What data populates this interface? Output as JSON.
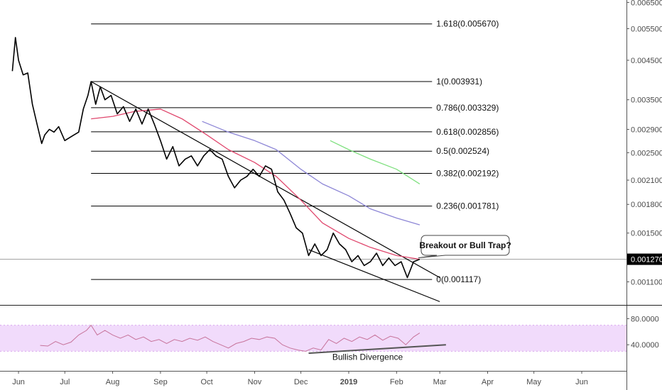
{
  "chart_data": [
    {
      "type": "line",
      "panel": "price",
      "scale": "log",
      "ylim": [
        0.00095,
        0.0066
      ],
      "xlim": [
        "2018-05-20",
        "2019-06-30"
      ],
      "x_ticks": [
        {
          "date": "2018-06-01",
          "label": "Jun"
        },
        {
          "date": "2018-07-01",
          "label": "Jul"
        },
        {
          "date": "2018-08-01",
          "label": "Aug"
        },
        {
          "date": "2018-09-01",
          "label": "Sep"
        },
        {
          "date": "2018-10-01",
          "label": "Oct"
        },
        {
          "date": "2018-11-01",
          "label": "Nov"
        },
        {
          "date": "2018-12-01",
          "label": "Dec"
        },
        {
          "date": "2019-01-01",
          "label": "2019"
        },
        {
          "date": "2019-02-01",
          "label": "Feb"
        },
        {
          "date": "2019-03-01",
          "label": "Mar"
        },
        {
          "date": "2019-04-01",
          "label": "Apr"
        },
        {
          "date": "2019-05-01",
          "label": "May"
        },
        {
          "date": "2019-06-01",
          "label": "Jun"
        }
      ],
      "y_ticks": [
        "0.006500",
        "0.005500",
        "0.004500",
        "0.003500",
        "0.002900",
        "0.002500",
        "0.002100",
        "0.001800",
        "0.001500",
        "0.001100"
      ],
      "last_price": "0.001270",
      "colors": {
        "price": "#000000",
        "ma_short": "#e0476d",
        "ma_mid": "#8d86d6",
        "ma_long": "#7fe07f",
        "last_price_line": "#9e9e9e",
        "rsi_band": "#f1dbfb",
        "rsi_line": "#c7739b"
      },
      "series": [
        {
          "key": "price",
          "values": [
            [
              "2018-05-28",
              0.0042
            ],
            [
              "2018-05-30",
              0.0052
            ],
            [
              "2018-06-01",
              0.0045
            ],
            [
              "2018-06-04",
              0.0041
            ],
            [
              "2018-06-07",
              0.00415
            ],
            [
              "2018-06-10",
              0.0034
            ],
            [
              "2018-06-13",
              0.003
            ],
            [
              "2018-06-16",
              0.00265
            ],
            [
              "2018-06-18",
              0.0028
            ],
            [
              "2018-06-21",
              0.0029
            ],
            [
              "2018-06-24",
              0.00285
            ],
            [
              "2018-06-27",
              0.00295
            ],
            [
              "2018-07-01",
              0.0027
            ],
            [
              "2018-07-04",
              0.00275
            ],
            [
              "2018-07-07",
              0.0028
            ],
            [
              "2018-07-10",
              0.00285
            ],
            [
              "2018-07-13",
              0.0033
            ],
            [
              "2018-07-16",
              0.0036
            ],
            [
              "2018-07-18",
              0.00393
            ],
            [
              "2018-07-21",
              0.0034
            ],
            [
              "2018-07-24",
              0.0038
            ],
            [
              "2018-07-27",
              0.0035
            ],
            [
              "2018-07-31",
              0.0036
            ],
            [
              "2018-08-04",
              0.0032
            ],
            [
              "2018-08-08",
              0.00335
            ],
            [
              "2018-08-12",
              0.00305
            ],
            [
              "2018-08-16",
              0.0033
            ],
            [
              "2018-08-20",
              0.003
            ],
            [
              "2018-08-24",
              0.0033
            ],
            [
              "2018-08-28",
              0.003
            ],
            [
              "2018-09-01",
              0.0027
            ],
            [
              "2018-09-05",
              0.0024
            ],
            [
              "2018-09-09",
              0.0026
            ],
            [
              "2018-09-13",
              0.0023
            ],
            [
              "2018-09-17",
              0.0024
            ],
            [
              "2018-09-21",
              0.00245
            ],
            [
              "2018-09-25",
              0.0023
            ],
            [
              "2018-09-29",
              0.00245
            ],
            [
              "2018-10-03",
              0.00255
            ],
            [
              "2018-10-07",
              0.00245
            ],
            [
              "2018-10-11",
              0.0024
            ],
            [
              "2018-10-15",
              0.00215
            ],
            [
              "2018-10-19",
              0.002
            ],
            [
              "2018-10-23",
              0.0021
            ],
            [
              "2018-10-27",
              0.00215
            ],
            [
              "2018-10-31",
              0.00225
            ],
            [
              "2018-11-04",
              0.00215
            ],
            [
              "2018-11-08",
              0.0023
            ],
            [
              "2018-11-12",
              0.00225
            ],
            [
              "2018-11-16",
              0.00195
            ],
            [
              "2018-11-20",
              0.00185
            ],
            [
              "2018-11-24",
              0.0017
            ],
            [
              "2018-11-28",
              0.00155
            ],
            [
              "2018-12-02",
              0.0015
            ],
            [
              "2018-12-06",
              0.0013
            ],
            [
              "2018-12-10",
              0.0014
            ],
            [
              "2018-12-14",
              0.0013
            ],
            [
              "2018-12-18",
              0.00135
            ],
            [
              "2018-12-22",
              0.0015
            ],
            [
              "2018-12-26",
              0.0014
            ],
            [
              "2018-12-30",
              0.00135
            ],
            [
              "2019-01-03",
              0.00125
            ],
            [
              "2019-01-07",
              0.0013
            ],
            [
              "2019-01-11",
              0.00122
            ],
            [
              "2019-01-15",
              0.00125
            ],
            [
              "2019-01-19",
              0.00132
            ],
            [
              "2019-01-23",
              0.00122
            ],
            [
              "2019-01-27",
              0.00128
            ],
            [
              "2019-01-31",
              0.00122
            ],
            [
              "2019-02-04",
              0.00125
            ],
            [
              "2019-02-08",
              0.00113
            ],
            [
              "2019-02-12",
              0.00125
            ],
            [
              "2019-02-16",
              0.00127
            ]
          ]
        },
        {
          "key": "ma_short",
          "values": [
            [
              "2018-07-18",
              0.0031
            ],
            [
              "2018-08-01",
              0.00315
            ],
            [
              "2018-08-15",
              0.00325
            ],
            [
              "2018-09-01",
              0.0033
            ],
            [
              "2018-09-15",
              0.0031
            ],
            [
              "2018-10-01",
              0.0028
            ],
            [
              "2018-10-15",
              0.00255
            ],
            [
              "2018-11-01",
              0.00235
            ],
            [
              "2018-11-15",
              0.00215
            ],
            [
              "2018-12-01",
              0.00185
            ],
            [
              "2018-12-15",
              0.0016
            ],
            [
              "2019-01-01",
              0.00145
            ],
            [
              "2019-01-15",
              0.00137
            ],
            [
              "2019-02-01",
              0.0013
            ],
            [
              "2019-02-16",
              0.00127
            ]
          ]
        },
        {
          "key": "ma_mid",
          "values": [
            [
              "2018-09-28",
              0.00305
            ],
            [
              "2018-10-15",
              0.00285
            ],
            [
              "2018-11-01",
              0.0027
            ],
            [
              "2018-11-15",
              0.00255
            ],
            [
              "2018-12-01",
              0.00225
            ],
            [
              "2018-12-15",
              0.00205
            ],
            [
              "2019-01-01",
              0.0019
            ],
            [
              "2019-01-15",
              0.00175
            ],
            [
              "2019-02-01",
              0.00165
            ],
            [
              "2019-02-16",
              0.00158
            ]
          ]
        },
        {
          "key": "ma_long",
          "values": [
            [
              "2018-12-20",
              0.0027
            ],
            [
              "2019-01-01",
              0.00255
            ],
            [
              "2019-01-15",
              0.0024
            ],
            [
              "2019-02-01",
              0.00225
            ],
            [
              "2019-02-16",
              0.00205
            ]
          ]
        }
      ],
      "fib_levels": [
        {
          "label": "1.618(0.005670)",
          "value": 0.00567
        },
        {
          "label": "1(0.003931)",
          "value": 0.003931
        },
        {
          "label": "0.786(0.003329)",
          "value": 0.003329
        },
        {
          "label": "0.618(0.002856)",
          "value": 0.002856
        },
        {
          "label": "0.5(0.002524)",
          "value": 0.002524
        },
        {
          "label": "0.382(0.002192)",
          "value": 0.002192
        },
        {
          "label": "0.236(0.001781)",
          "value": 0.001781
        },
        {
          "label": "0(0.001117)",
          "value": 0.001117
        }
      ],
      "fib_range": [
        "2018-07-18",
        "2019-02-24"
      ],
      "trend_lines": [
        {
          "name": "upper-trendline",
          "from": [
            "2018-07-18",
            0.00393
          ],
          "to": [
            "2019-03-01",
            0.00113
          ]
        },
        {
          "name": "lower-trendline",
          "from": [
            "2018-12-06",
            0.00135
          ],
          "to": [
            "2019-03-01",
            0.00097
          ]
        }
      ],
      "annotations": [
        {
          "text": "Breakout or Bull Trap?",
          "at": [
            "2019-02-16",
            0.00127
          ]
        }
      ]
    },
    {
      "type": "line",
      "panel": "rsi",
      "ylim": [
        0,
        100
      ],
      "band": [
        30,
        70
      ],
      "y_ticks": [
        "80.0000",
        "40.0000"
      ],
      "values": [
        [
          "2018-06-15",
          39
        ],
        [
          "2018-06-20",
          38
        ],
        [
          "2018-06-25",
          45
        ],
        [
          "2018-06-30",
          40
        ],
        [
          "2018-07-05",
          44
        ],
        [
          "2018-07-10",
          55
        ],
        [
          "2018-07-15",
          62
        ],
        [
          "2018-07-18",
          70
        ],
        [
          "2018-07-22",
          55
        ],
        [
          "2018-07-27",
          62
        ],
        [
          "2018-08-01",
          55
        ],
        [
          "2018-08-06",
          50
        ],
        [
          "2018-08-11",
          55
        ],
        [
          "2018-08-16",
          48
        ],
        [
          "2018-08-21",
          52
        ],
        [
          "2018-08-26",
          45
        ],
        [
          "2018-08-31",
          48
        ],
        [
          "2018-09-05",
          42
        ],
        [
          "2018-09-10",
          48
        ],
        [
          "2018-09-15",
          45
        ],
        [
          "2018-09-20",
          50
        ],
        [
          "2018-09-25",
          47
        ],
        [
          "2018-09-30",
          52
        ],
        [
          "2018-10-05",
          45
        ],
        [
          "2018-10-10",
          40
        ],
        [
          "2018-10-15",
          35
        ],
        [
          "2018-10-20",
          42
        ],
        [
          "2018-10-25",
          45
        ],
        [
          "2018-10-30",
          50
        ],
        [
          "2018-11-04",
          48
        ],
        [
          "2018-11-09",
          52
        ],
        [
          "2018-11-14",
          50
        ],
        [
          "2018-11-19",
          40
        ],
        [
          "2018-11-24",
          35
        ],
        [
          "2018-11-29",
          32
        ],
        [
          "2018-12-04",
          30
        ],
        [
          "2018-12-09",
          35
        ],
        [
          "2018-12-14",
          32
        ],
        [
          "2018-12-19",
          48
        ],
        [
          "2018-12-24",
          42
        ],
        [
          "2018-12-29",
          50
        ],
        [
          "2019-01-03",
          45
        ],
        [
          "2019-01-08",
          52
        ],
        [
          "2019-01-13",
          48
        ],
        [
          "2019-01-18",
          55
        ],
        [
          "2019-01-23",
          47
        ],
        [
          "2019-01-28",
          53
        ],
        [
          "2019-02-02",
          50
        ],
        [
          "2019-02-07",
          40
        ],
        [
          "2019-02-12",
          52
        ],
        [
          "2019-02-16",
          58
        ]
      ],
      "divergence_line": {
        "from": [
          "2018-12-06",
          27
        ],
        "to": [
          "2019-03-05",
          40
        ]
      },
      "annotations": [
        {
          "text": "Bullish Divergence",
          "at": [
            "2019-01-10",
            20
          ]
        }
      ]
    }
  ]
}
